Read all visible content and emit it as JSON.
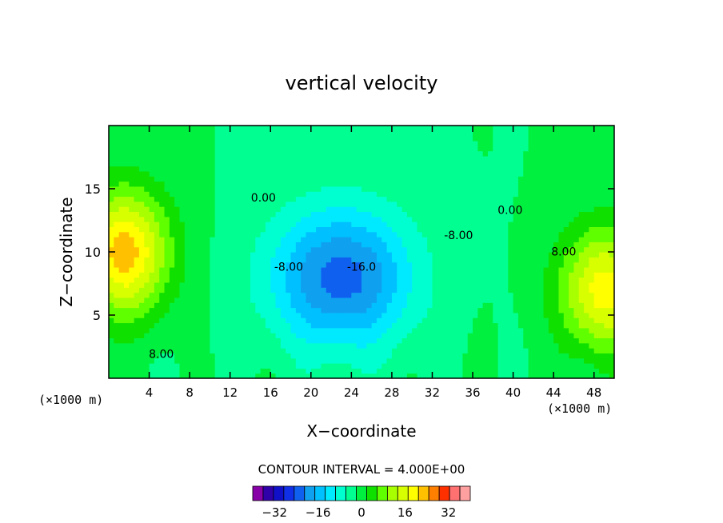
{
  "chart_data": {
    "type": "heatmap",
    "title": "vertical velocity",
    "xlabel": "X−coordinate",
    "ylabel": "Z−coordinate",
    "x_unit": "(×1000 m)",
    "y_unit": "(×1000 m)",
    "xlim": [
      0,
      50
    ],
    "ylim": [
      0,
      20
    ],
    "x_ticks": [
      "4",
      "8",
      "12",
      "16",
      "20",
      "24",
      "28",
      "32",
      "36",
      "40",
      "44",
      "48"
    ],
    "x_tick_values": [
      4,
      8,
      12,
      16,
      20,
      24,
      28,
      32,
      36,
      40,
      44,
      48
    ],
    "y_ticks": [
      "5",
      "10",
      "15"
    ],
    "y_tick_values": [
      5,
      10,
      15
    ],
    "contour_interval_text": "CONTOUR INTERVAL = 4.000E+00",
    "contour_interval": 4,
    "contour_labels": [
      {
        "text": "0.00",
        "x": 15.3,
        "y": 14.0
      },
      {
        "text": "0.00",
        "x": 39.7,
        "y": 13.0
      },
      {
        "text": "-8.00",
        "x": 17.8,
        "y": 8.5
      },
      {
        "text": "-8.00",
        "x": 34.6,
        "y": 11.0
      },
      {
        "text": "-16.0",
        "x": 25.0,
        "y": 8.5
      },
      {
        "text": "8.00",
        "x": 5.2,
        "y": 1.6
      },
      {
        "text": "8.00",
        "x": 45.0,
        "y": 9.7
      }
    ],
    "features": [
      {
        "name": "updraft left",
        "x": 1.5,
        "z": 10.0,
        "w": 26
      },
      {
        "name": "updraft right",
        "x": 49.0,
        "z": 7.0,
        "w": 22
      },
      {
        "name": "downdraft center",
        "x": 23.0,
        "z": 8.0,
        "w": -22
      }
    ],
    "colorbar": {
      "tick_labels": [
        "−32",
        "−16",
        "0",
        "16",
        "32"
      ],
      "tick_values": [
        -32,
        -16,
        0,
        16,
        32
      ],
      "levels": [
        -40,
        -36,
        -32,
        -28,
        -24,
        -20,
        -16,
        -12,
        -8,
        -4,
        0,
        4,
        8,
        12,
        16,
        20,
        24,
        28,
        32,
        36,
        40
      ],
      "colors": [
        "#8800a8",
        "#3000a8",
        "#1010c8",
        "#1030e8",
        "#1060f0",
        "#10a0f0",
        "#00c0ff",
        "#00eaff",
        "#00ffd0",
        "#00ff90",
        "#00f040",
        "#10e000",
        "#60ff00",
        "#a8ff00",
        "#d8ff00",
        "#ffff00",
        "#ffc000",
        "#ff8000",
        "#ff3000",
        "#ff7070",
        "#ffa0a0"
      ]
    }
  }
}
